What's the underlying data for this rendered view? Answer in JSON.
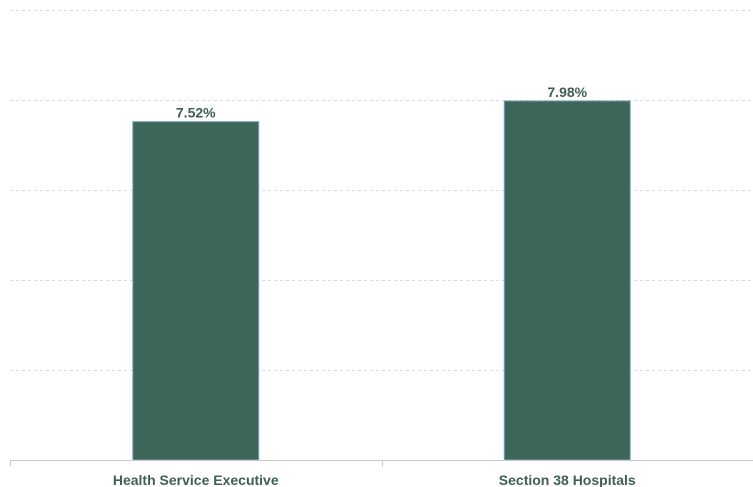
{
  "chart_data": {
    "type": "bar",
    "categories": [
      "Health Service Executive",
      "Section 38 Hospitals"
    ],
    "values": [
      7.52,
      7.98
    ],
    "value_labels": [
      "7.52%",
      "7.98%"
    ],
    "ylim": [
      0,
      10
    ],
    "grid": true,
    "bar_color": "#3d6658",
    "label_color": "#3f5f55"
  }
}
